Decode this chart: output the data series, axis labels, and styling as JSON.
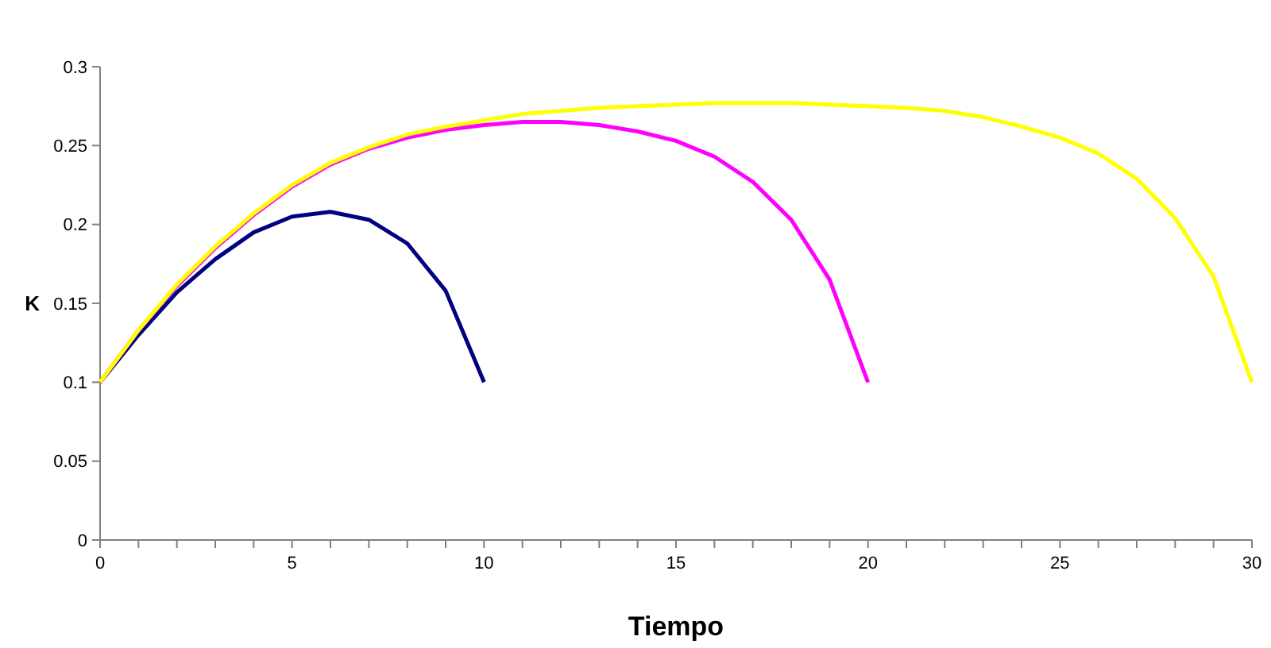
{
  "chart_data": {
    "type": "line",
    "xlabel": "Tiempo",
    "ylabel": "K",
    "xlim": [
      0,
      30
    ],
    "ylim": [
      0,
      0.3
    ],
    "xticks": [
      0,
      {
        "value": 1,
        "label": null
      },
      {
        "value": 2,
        "label": null
      },
      {
        "value": 3,
        "label": null
      },
      {
        "value": 4,
        "label": null
      },
      5,
      {
        "value": 6,
        "label": null
      },
      {
        "value": 7,
        "label": null
      },
      {
        "value": 8,
        "label": null
      },
      {
        "value": 9,
        "label": null
      },
      10,
      {
        "value": 11,
        "label": null
      },
      {
        "value": 12,
        "label": null
      },
      {
        "value": 13,
        "label": null
      },
      {
        "value": 14,
        "label": null
      },
      15,
      {
        "value": 16,
        "label": null
      },
      {
        "value": 17,
        "label": null
      },
      {
        "value": 18,
        "label": null
      },
      {
        "value": 19,
        "label": null
      },
      20,
      {
        "value": 21,
        "label": null
      },
      {
        "value": 22,
        "label": null
      },
      {
        "value": 23,
        "label": null
      },
      {
        "value": 24,
        "label": null
      },
      25,
      {
        "value": 26,
        "label": null
      },
      {
        "value": 27,
        "label": null
      },
      {
        "value": 28,
        "label": null
      },
      {
        "value": 29,
        "label": null
      },
      30
    ],
    "yticks": [
      0,
      0.05,
      0.1,
      0.15,
      0.2,
      0.25,
      0.3
    ],
    "grid": false,
    "line_style": "solid",
    "series": [
      {
        "color": "#000080",
        "x": [
          0,
          1,
          2,
          3,
          4,
          5,
          6,
          7,
          8,
          9,
          10
        ],
        "values": [
          0.1,
          0.13,
          0.157,
          0.178,
          0.195,
          0.205,
          0.208,
          0.203,
          0.188,
          0.158,
          0.1
        ]
      },
      {
        "color": "#ff00ff",
        "x": [
          0,
          1,
          2,
          3,
          4,
          5,
          6,
          7,
          8,
          9,
          10,
          11,
          12,
          13,
          14,
          15,
          16,
          17,
          18,
          19,
          20
        ],
        "values": [
          0.1,
          0.133,
          0.161,
          0.185,
          0.206,
          0.224,
          0.238,
          0.248,
          0.255,
          0.26,
          0.263,
          0.265,
          0.265,
          0.263,
          0.259,
          0.253,
          0.243,
          0.227,
          0.203,
          0.165,
          0.1
        ]
      },
      {
        "color": "#ffff00",
        "x": [
          0,
          1,
          2,
          3,
          4,
          5,
          6,
          7,
          8,
          9,
          10,
          11,
          12,
          13,
          14,
          15,
          16,
          17,
          18,
          19,
          20,
          21,
          22,
          23,
          24,
          25,
          26,
          27,
          28,
          29,
          30
        ],
        "values": [
          0.1,
          0.133,
          0.162,
          0.186,
          0.207,
          0.225,
          0.239,
          0.249,
          0.257,
          0.262,
          0.266,
          0.27,
          0.272,
          0.274,
          0.275,
          0.276,
          0.277,
          0.277,
          0.277,
          0.276,
          0.275,
          0.274,
          0.272,
          0.268,
          0.262,
          0.255,
          0.245,
          0.229,
          0.204,
          0.167,
          0.1
        ]
      }
    ]
  }
}
